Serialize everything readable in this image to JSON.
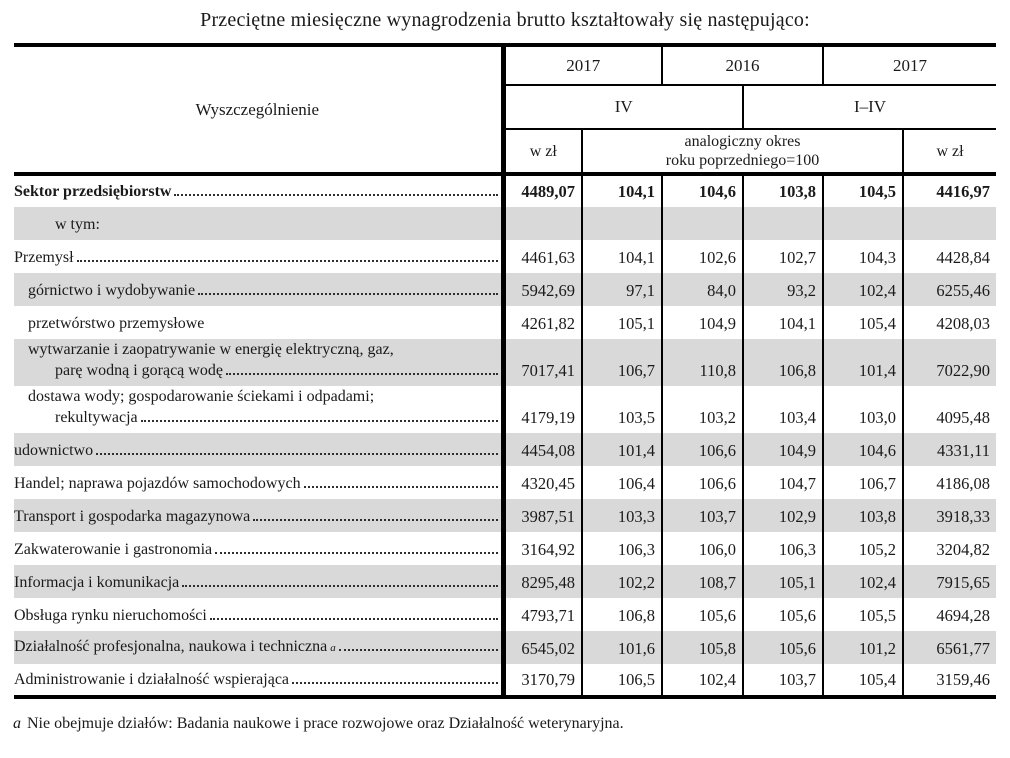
{
  "title": "Przeciętne miesięczne wynagrodzenia brutto kształtowały się następująco:",
  "table": {
    "header": {
      "col_label": "Wyszczególnienie",
      "years": [
        "2017",
        "2016",
        "2017"
      ],
      "periods": [
        "IV",
        "I–IV"
      ],
      "unit_left": "w zł",
      "index_label_line1": "analogiczny okres",
      "index_label_line2": "roku poprzedniego=100",
      "unit_right": "w zł"
    },
    "rows": [
      {
        "lines": [
          {
            "text": "Sektor przedsiębiorstw",
            "indent": 0,
            "dots": true
          }
        ],
        "bold": true,
        "shaded": false,
        "values": [
          "4489,07",
          "104,1",
          "104,6",
          "103,8",
          "104,5",
          "4416,97"
        ]
      },
      {
        "lines": [
          {
            "text": "w tym:",
            "indent": 2,
            "dots": false
          }
        ],
        "bold": false,
        "shaded": true,
        "values": [
          "",
          "",
          "",
          "",
          "",
          ""
        ]
      },
      {
        "lines": [
          {
            "text": "Przemysł",
            "indent": 0,
            "dots": true
          }
        ],
        "bold": false,
        "shaded": false,
        "values": [
          "4461,63",
          "104,1",
          "102,6",
          "102,7",
          "104,3",
          "4428,84"
        ]
      },
      {
        "lines": [
          {
            "text": "górnictwo i wydobywanie ",
            "indent": 1,
            "dots": true
          }
        ],
        "bold": false,
        "shaded": true,
        "values": [
          "5942,69",
          "97,1",
          "84,0",
          "93,2",
          "102,4",
          "6255,46"
        ]
      },
      {
        "lines": [
          {
            "text": "przetwórstwo przemysłowe",
            "indent": 1,
            "dots": false
          }
        ],
        "bold": false,
        "shaded": false,
        "values": [
          "4261,82",
          "105,1",
          "104,9",
          "104,1",
          "105,4",
          "4208,03"
        ]
      },
      {
        "lines": [
          {
            "text": "wytwarzanie i zaopatrywanie w energię elektryczną, gaz,",
            "indent": 1,
            "dots": false
          },
          {
            "text": "parę wodną i gorącą wodę",
            "indent": 2,
            "dots": true
          }
        ],
        "bold": false,
        "shaded": true,
        "values": [
          "7017,41",
          "106,7",
          "110,8",
          "106,8",
          "101,4",
          "7022,90"
        ]
      },
      {
        "lines": [
          {
            "text": "dostawa wody; gospodarowanie ściekami i odpadami;",
            "indent": 1,
            "dots": false
          },
          {
            "text": "rekultywacja",
            "indent": 2,
            "dots": true
          }
        ],
        "bold": false,
        "shaded": false,
        "values": [
          "4179,19",
          "103,5",
          "103,2",
          "103,4",
          "103,0",
          "4095,48"
        ]
      },
      {
        "lines": [
          {
            "text": "udownictwo ",
            "indent": 0,
            "dots": true
          }
        ],
        "bold": false,
        "shaded": true,
        "values": [
          "4454,08",
          "101,4",
          "106,6",
          "104,9",
          "104,6",
          "4331,11"
        ]
      },
      {
        "lines": [
          {
            "text": "Handel; naprawa pojazdów samochodowych",
            "indent": 0,
            "dots": true
          }
        ],
        "bold": false,
        "shaded": false,
        "values": [
          "4320,45",
          "106,4",
          "106,6",
          "104,7",
          "106,7",
          "4186,08"
        ]
      },
      {
        "lines": [
          {
            "text": "Transport i gospodarka magazynowa",
            "indent": 0,
            "dots": true
          }
        ],
        "bold": false,
        "shaded": true,
        "values": [
          "3987,51",
          "103,3",
          "103,7",
          "102,9",
          "103,8",
          "3918,33"
        ]
      },
      {
        "lines": [
          {
            "text": "Zakwaterowanie i gastronomia",
            "indent": 0,
            "dots": true
          }
        ],
        "bold": false,
        "shaded": false,
        "values": [
          "3164,92",
          "106,3",
          "106,0",
          "106,3",
          "105,2",
          "3204,82"
        ]
      },
      {
        "lines": [
          {
            "text": "Informacja i komunikacja",
            "indent": 0,
            "dots": true
          }
        ],
        "bold": false,
        "shaded": true,
        "values": [
          "8295,48",
          "102,2",
          "108,7",
          "105,1",
          "102,4",
          "7915,65"
        ]
      },
      {
        "lines": [
          {
            "text": "Obsługa rynku nieruchomości ",
            "indent": 0,
            "dots": true
          }
        ],
        "bold": false,
        "shaded": false,
        "values": [
          "4793,71",
          "106,8",
          "105,6",
          "105,6",
          "105,5",
          "4694,28"
        ]
      },
      {
        "lines": [
          {
            "text": "Działalność profesjonalna, naukowa i techniczna",
            "indent": 0,
            "dots": true,
            "sup": "a"
          }
        ],
        "bold": false,
        "shaded": true,
        "values": [
          "6545,02",
          "101,6",
          "105,8",
          "105,6",
          "101,2",
          "6561,77"
        ]
      },
      {
        "lines": [
          {
            "text": "Administrowanie i działalność wspierająca",
            "indent": 0,
            "dots": true
          }
        ],
        "bold": false,
        "shaded": false,
        "values": [
          "3170,79",
          "106,5",
          "102,4",
          "103,7",
          "105,4",
          "3159,46"
        ]
      }
    ]
  },
  "footnote": {
    "marker": "a",
    "text": "Nie obejmuje działów: Badania naukowe i prace rozwojowe oraz Działalność weterynaryjna."
  },
  "colors": {
    "shaded_row": "#d9d9d9",
    "border": "#000000",
    "text": "#1a1a1a"
  }
}
